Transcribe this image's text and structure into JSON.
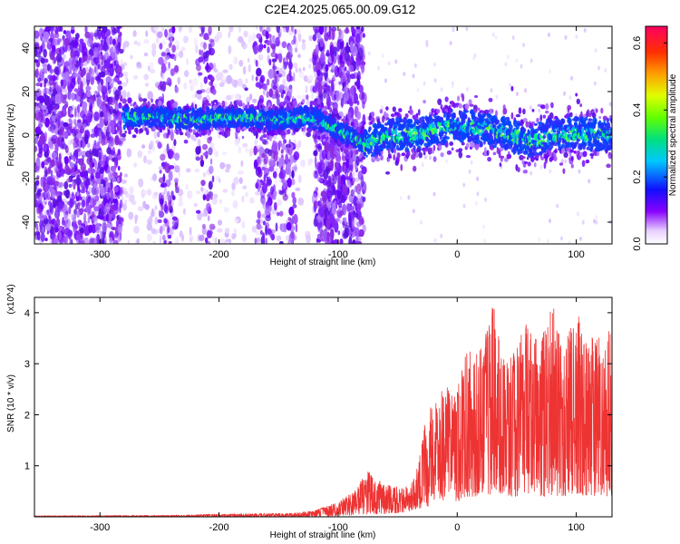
{
  "title": "C2E4.2025.065.00.09.G12",
  "chart_data": [
    {
      "type": "heatmap",
      "xlabel": "Height of straight line (km)",
      "ylabel": "Frequency (Hz)",
      "xlim": [
        -355,
        130
      ],
      "ylim": [
        -50,
        50
      ],
      "x_ticks": [
        -300,
        -200,
        -100,
        0,
        100
      ],
      "y_ticks": [
        -40,
        -20,
        0,
        20,
        40
      ],
      "colorbar": {
        "label": "Normalized spectral amplitude",
        "range": [
          0.0,
          0.65
        ],
        "ticks": [
          "0.0",
          "0.2",
          "0.4",
          "0.6"
        ]
      },
      "regions": [
        {
          "x_range": [
            -355,
            -280
          ],
          "description_values": {
            "density": "dense noise"
          }
        },
        {
          "x_range": [
            -280,
            -120
          ],
          "signal_center_hz": 8
        },
        {
          "x_range": [
            -120,
            -78
          ],
          "description_values": {
            "density": "dense noise"
          }
        },
        {
          "x_range": [
            -78,
            130
          ],
          "signal_center_hz": 1
        }
      ],
      "signal_track": {
        "x": [
          -280,
          -250,
          -220,
          -200,
          -180,
          -150,
          -130,
          -120,
          -78,
          -60,
          -40,
          -20,
          0,
          20,
          40,
          60,
          80,
          100,
          130
        ],
        "y": [
          8,
          8,
          7,
          8,
          8,
          7,
          8,
          8,
          -4,
          0,
          0,
          2,
          5,
          3,
          1,
          -3,
          0,
          1,
          0
        ]
      }
    },
    {
      "type": "line",
      "xlabel": "Height of straight line (km)",
      "ylabel": "SNR (10 * v/v)",
      "y_multiplier": "(x10^4)",
      "xlim": [
        -355,
        130
      ],
      "ylim": [
        0,
        4.3
      ],
      "x_ticks": [
        -300,
        -200,
        -100,
        0,
        100
      ],
      "y_ticks": [
        1,
        2,
        3,
        4
      ],
      "color": "#ee3333",
      "envelope": {
        "x": [
          -355,
          -250,
          -180,
          -140,
          -120,
          -100,
          -90,
          -75,
          -60,
          -45,
          -35,
          -25,
          -15,
          -5,
          0,
          10,
          20,
          30,
          40,
          50,
          60,
          70,
          80,
          90,
          100,
          110,
          120,
          130
        ],
        "max": [
          0.02,
          0.03,
          0.06,
          0.07,
          0.12,
          0.3,
          0.45,
          0.9,
          0.65,
          0.55,
          0.8,
          2.1,
          2.4,
          2.7,
          2.5,
          3.5,
          3.3,
          4.2,
          3.1,
          3.4,
          3.9,
          3.5,
          4.2,
          3.3,
          4.2,
          3.5,
          3.6,
          3.7
        ],
        "min": [
          0.0,
          0.0,
          0.0,
          0.0,
          0.0,
          0.02,
          0.03,
          0.05,
          0.06,
          0.08,
          0.15,
          0.2,
          0.3,
          0.35,
          0.3,
          0.4,
          0.4,
          0.45,
          0.4,
          0.4,
          0.45,
          0.4,
          0.4,
          0.4,
          0.45,
          0.4,
          0.4,
          0.4
        ]
      }
    }
  ]
}
